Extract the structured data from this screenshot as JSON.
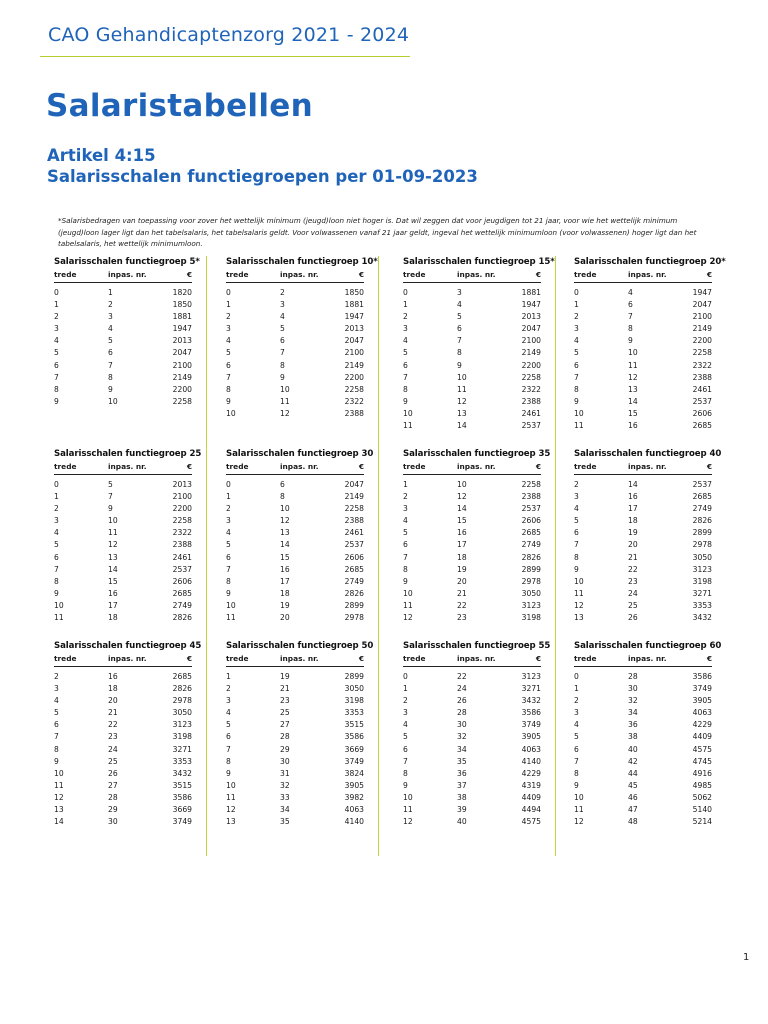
{
  "header": {
    "title": "CAO Gehandicaptenzorg 2021 - 2024"
  },
  "page_title": "Salaristabellen",
  "article": {
    "number": "Artikel 4:15",
    "subtitle": "Salarisschalen functiegroepen per 01-09-2023"
  },
  "footnote": "*Salarisbedragen van toepassing voor zover het wettelijk minimum (jeugd)loon niet hoger is. Dat wil zeggen dat voor jeugdigen tot 21 jaar, voor wie het wettelijk minimum (jeugd)loon lager ligt dan het tabelsalaris, het tabelsalaris geldt. Voor volwassenen vanaf 21 jaar geldt, ingeval het wettelijk minimumloon (voor volwassenen) hoger ligt dan het tabelsalaris, het wettelijk minimumloon.",
  "column_headers": {
    "trede": "trede",
    "inpas": "inpas. nr.",
    "euro": "€"
  },
  "tables": [
    {
      "title": "Salarisschalen functiegroep 5*",
      "rows": [
        [
          "0",
          "1",
          "1820"
        ],
        [
          "1",
          "2",
          "1850"
        ],
        [
          "2",
          "3",
          "1881"
        ],
        [
          "3",
          "4",
          "1947"
        ],
        [
          "4",
          "5",
          "2013"
        ],
        [
          "5",
          "6",
          "2047"
        ],
        [
          "6",
          "7",
          "2100"
        ],
        [
          "7",
          "8",
          "2149"
        ],
        [
          "8",
          "9",
          "2200"
        ],
        [
          "9",
          "10",
          "2258"
        ]
      ]
    },
    {
      "title": "Salarisschalen functiegroep 10*",
      "rows": [
        [
          "0",
          "2",
          "1850"
        ],
        [
          "1",
          "3",
          "1881"
        ],
        [
          "2",
          "4",
          "1947"
        ],
        [
          "3",
          "5",
          "2013"
        ],
        [
          "4",
          "6",
          "2047"
        ],
        [
          "5",
          "7",
          "2100"
        ],
        [
          "6",
          "8",
          "2149"
        ],
        [
          "7",
          "9",
          "2200"
        ],
        [
          "8",
          "10",
          "2258"
        ],
        [
          "9",
          "11",
          "2322"
        ],
        [
          "10",
          "12",
          "2388"
        ]
      ]
    },
    {
      "title": "Salarisschalen functiegroep 15*",
      "rows": [
        [
          "0",
          "3",
          "1881"
        ],
        [
          "1",
          "4",
          "1947"
        ],
        [
          "2",
          "5",
          "2013"
        ],
        [
          "3",
          "6",
          "2047"
        ],
        [
          "4",
          "7",
          "2100"
        ],
        [
          "5",
          "8",
          "2149"
        ],
        [
          "6",
          "9",
          "2200"
        ],
        [
          "7",
          "10",
          "2258"
        ],
        [
          "8",
          "11",
          "2322"
        ],
        [
          "9",
          "12",
          "2388"
        ],
        [
          "10",
          "13",
          "2461"
        ],
        [
          "11",
          "14",
          "2537"
        ]
      ]
    },
    {
      "title": "Salarisschalen functiegroep 20*",
      "rows": [
        [
          "0",
          "4",
          "1947"
        ],
        [
          "1",
          "6",
          "2047"
        ],
        [
          "2",
          "7",
          "2100"
        ],
        [
          "3",
          "8",
          "2149"
        ],
        [
          "4",
          "9",
          "2200"
        ],
        [
          "5",
          "10",
          "2258"
        ],
        [
          "6",
          "11",
          "2322"
        ],
        [
          "7",
          "12",
          "2388"
        ],
        [
          "8",
          "13",
          "2461"
        ],
        [
          "9",
          "14",
          "2537"
        ],
        [
          "10",
          "15",
          "2606"
        ],
        [
          "11",
          "16",
          "2685"
        ]
      ]
    },
    {
      "title": "Salarisschalen functiegroep 25",
      "rows": [
        [
          "0",
          "5",
          "2013"
        ],
        [
          "1",
          "7",
          "2100"
        ],
        [
          "2",
          "9",
          "2200"
        ],
        [
          "3",
          "10",
          "2258"
        ],
        [
          "4",
          "11",
          "2322"
        ],
        [
          "5",
          "12",
          "2388"
        ],
        [
          "6",
          "13",
          "2461"
        ],
        [
          "7",
          "14",
          "2537"
        ],
        [
          "8",
          "15",
          "2606"
        ],
        [
          "9",
          "16",
          "2685"
        ],
        [
          "10",
          "17",
          "2749"
        ],
        [
          "11",
          "18",
          "2826"
        ]
      ]
    },
    {
      "title": "Salarisschalen functiegroep 30",
      "rows": [
        [
          "0",
          "6",
          "2047"
        ],
        [
          "1",
          "8",
          "2149"
        ],
        [
          "2",
          "10",
          "2258"
        ],
        [
          "3",
          "12",
          "2388"
        ],
        [
          "4",
          "13",
          "2461"
        ],
        [
          "5",
          "14",
          "2537"
        ],
        [
          "6",
          "15",
          "2606"
        ],
        [
          "7",
          "16",
          "2685"
        ],
        [
          "8",
          "17",
          "2749"
        ],
        [
          "9",
          "18",
          "2826"
        ],
        [
          "10",
          "19",
          "2899"
        ],
        [
          "11",
          "20",
          "2978"
        ]
      ]
    },
    {
      "title": "Salarisschalen functiegroep 35",
      "rows": [
        [
          "1",
          "10",
          "2258"
        ],
        [
          "2",
          "12",
          "2388"
        ],
        [
          "3",
          "14",
          "2537"
        ],
        [
          "4",
          "15",
          "2606"
        ],
        [
          "5",
          "16",
          "2685"
        ],
        [
          "6",
          "17",
          "2749"
        ],
        [
          "7",
          "18",
          "2826"
        ],
        [
          "8",
          "19",
          "2899"
        ],
        [
          "9",
          "20",
          "2978"
        ],
        [
          "10",
          "21",
          "3050"
        ],
        [
          "11",
          "22",
          "3123"
        ],
        [
          "12",
          "23",
          "3198"
        ]
      ]
    },
    {
      "title": "Salarisschalen functiegroep 40",
      "rows": [
        [
          "2",
          "14",
          "2537"
        ],
        [
          "3",
          "16",
          "2685"
        ],
        [
          "4",
          "17",
          "2749"
        ],
        [
          "5",
          "18",
          "2826"
        ],
        [
          "6",
          "19",
          "2899"
        ],
        [
          "7",
          "20",
          "2978"
        ],
        [
          "8",
          "21",
          "3050"
        ],
        [
          "9",
          "22",
          "3123"
        ],
        [
          "10",
          "23",
          "3198"
        ],
        [
          "11",
          "24",
          "3271"
        ],
        [
          "12",
          "25",
          "3353"
        ],
        [
          "13",
          "26",
          "3432"
        ]
      ]
    },
    {
      "title": "Salarisschalen functiegroep 45",
      "rows": [
        [
          "2",
          "16",
          "2685"
        ],
        [
          "3",
          "18",
          "2826"
        ],
        [
          "4",
          "20",
          "2978"
        ],
        [
          "5",
          "21",
          "3050"
        ],
        [
          "6",
          "22",
          "3123"
        ],
        [
          "7",
          "23",
          "3198"
        ],
        [
          "8",
          "24",
          "3271"
        ],
        [
          "9",
          "25",
          "3353"
        ],
        [
          "10",
          "26",
          "3432"
        ],
        [
          "11",
          "27",
          "3515"
        ],
        [
          "12",
          "28",
          "3586"
        ],
        [
          "13",
          "29",
          "3669"
        ],
        [
          "14",
          "30",
          "3749"
        ]
      ]
    },
    {
      "title": "Salarisschalen functiegroep 50",
      "rows": [
        [
          "1",
          "19",
          "2899"
        ],
        [
          "2",
          "21",
          "3050"
        ],
        [
          "3",
          "23",
          "3198"
        ],
        [
          "4",
          "25",
          "3353"
        ],
        [
          "5",
          "27",
          "3515"
        ],
        [
          "6",
          "28",
          "3586"
        ],
        [
          "7",
          "29",
          "3669"
        ],
        [
          "8",
          "30",
          "3749"
        ],
        [
          "9",
          "31",
          "3824"
        ],
        [
          "10",
          "32",
          "3905"
        ],
        [
          "11",
          "33",
          "3982"
        ],
        [
          "12",
          "34",
          "4063"
        ],
        [
          "13",
          "35",
          "4140"
        ]
      ]
    },
    {
      "title": "Salarisschalen functiegroep 55",
      "rows": [
        [
          "0",
          "22",
          "3123"
        ],
        [
          "1",
          "24",
          "3271"
        ],
        [
          "2",
          "26",
          "3432"
        ],
        [
          "3",
          "28",
          "3586"
        ],
        [
          "4",
          "30",
          "3749"
        ],
        [
          "5",
          "32",
          "3905"
        ],
        [
          "6",
          "34",
          "4063"
        ],
        [
          "7",
          "35",
          "4140"
        ],
        [
          "8",
          "36",
          "4229"
        ],
        [
          "9",
          "37",
          "4319"
        ],
        [
          "10",
          "38",
          "4409"
        ],
        [
          "11",
          "39",
          "4494"
        ],
        [
          "12",
          "40",
          "4575"
        ]
      ]
    },
    {
      "title": "Salarisschalen functiegroep 60",
      "rows": [
        [
          "0",
          "28",
          "3586"
        ],
        [
          "1",
          "30",
          "3749"
        ],
        [
          "2",
          "32",
          "3905"
        ],
        [
          "3",
          "34",
          "4063"
        ],
        [
          "4",
          "36",
          "4229"
        ],
        [
          "5",
          "38",
          "4409"
        ],
        [
          "6",
          "40",
          "4575"
        ],
        [
          "7",
          "42",
          "4745"
        ],
        [
          "8",
          "44",
          "4916"
        ],
        [
          "9",
          "45",
          "4985"
        ],
        [
          "10",
          "46",
          "5062"
        ],
        [
          "11",
          "47",
          "5140"
        ],
        [
          "12",
          "48",
          "5214"
        ]
      ]
    }
  ],
  "page_number": "1"
}
